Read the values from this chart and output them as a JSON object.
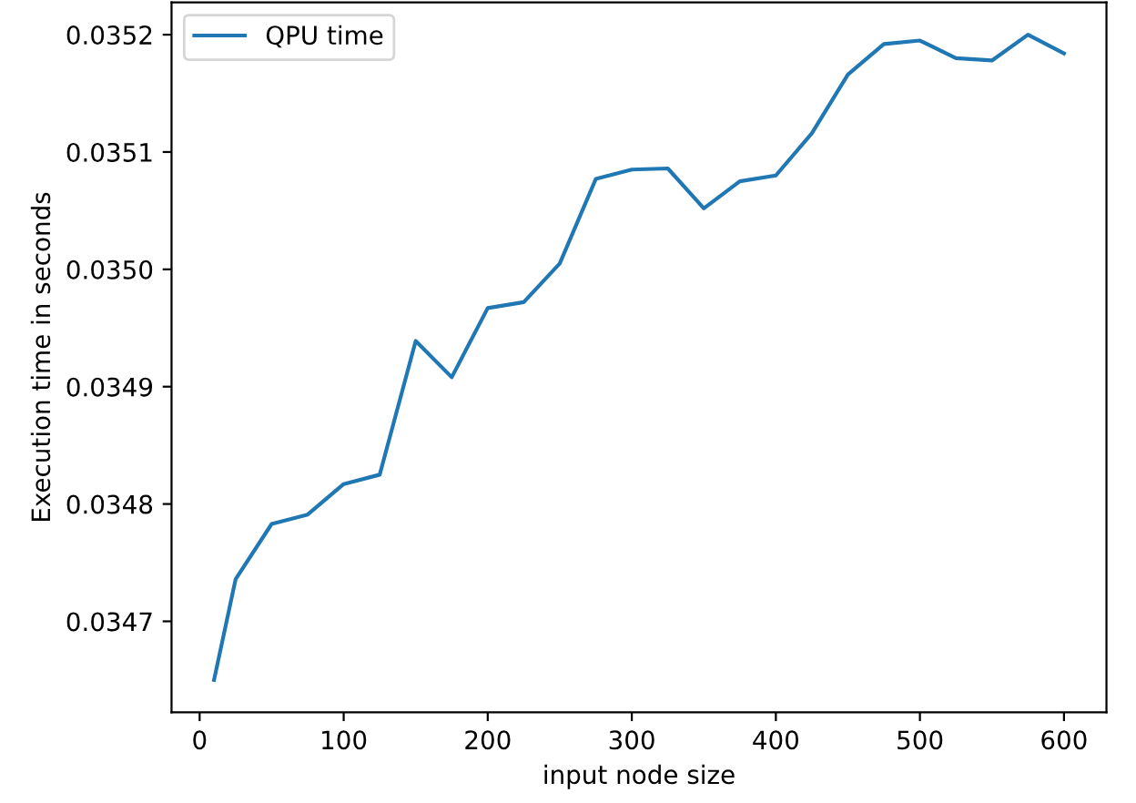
{
  "chart_data": {
    "type": "line",
    "xlabel": "input node size",
    "ylabel": "Execution time in seconds",
    "x": [
      10,
      25,
      50,
      75,
      100,
      125,
      150,
      175,
      200,
      225,
      250,
      275,
      300,
      325,
      350,
      375,
      400,
      425,
      450,
      475,
      500,
      525,
      550,
      575,
      600
    ],
    "series": [
      {
        "name": "QPU time",
        "color": "#1f77b4",
        "values": [
          0.03465,
          0.034736,
          0.034783,
          0.034791,
          0.034817,
          0.034825,
          0.034939,
          0.034908,
          0.034967,
          0.034972,
          0.035005,
          0.035077,
          0.035085,
          0.035086,
          0.035052,
          0.035075,
          0.03508,
          0.035116,
          0.035166,
          0.035192,
          0.035195,
          0.03518,
          0.035178,
          0.0352,
          0.035184
        ]
      }
    ],
    "xlim": [
      -19.5,
      629.5
    ],
    "xticks": [
      0,
      100,
      200,
      300,
      400,
      500,
      600
    ],
    "ylim": [
      0.0346225,
      0.0352275
    ],
    "yticks": [
      0.0347,
      0.0348,
      0.0349,
      {
        "value": 0.035,
        "label": "0.0350"
      },
      0.0351,
      0.0352
    ],
    "legend": "top left",
    "grid": false
  }
}
